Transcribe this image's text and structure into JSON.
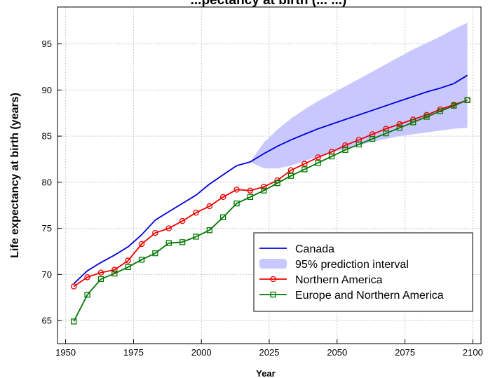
{
  "chart_data": {
    "type": "line",
    "title": "...pectancy at birth (... ...)",
    "xlabel": "Year",
    "ylabel": "Life expectancy at birth (years)",
    "xlim": [
      1947,
      2103
    ],
    "ylim": [
      62.5,
      99
    ],
    "x_ticks": [
      "1950",
      "1975",
      "2000",
      "2025",
      "2050",
      "2075",
      "2100"
    ],
    "y_ticks": [
      "65",
      "70",
      "75",
      "80",
      "85",
      "90",
      "95"
    ],
    "grid": true,
    "legend_position": "bottom-right",
    "series": [
      {
        "name": "Canada",
        "type": "line",
        "color": "#0000dd",
        "x": [
          1953,
          1958,
          1963,
          1968,
          1973,
          1978,
          1983,
          1988,
          1993,
          1998,
          2003,
          2008,
          2013,
          2018,
          2023,
          2028,
          2033,
          2038,
          2043,
          2048,
          2053,
          2058,
          2063,
          2068,
          2073,
          2078,
          2083,
          2088,
          2093,
          2098
        ],
        "y": [
          69.0,
          70.4,
          71.3,
          72.1,
          73.0,
          74.3,
          75.9,
          76.8,
          77.7,
          78.6,
          79.8,
          80.8,
          81.8,
          82.2,
          83.1,
          83.9,
          84.6,
          85.2,
          85.8,
          86.3,
          86.8,
          87.3,
          87.8,
          88.3,
          88.8,
          89.3,
          89.8,
          90.2,
          90.7,
          91.6
        ]
      },
      {
        "name": "95% prediction interval",
        "type": "band",
        "color": "#c8c8ff",
        "x": [
          2018,
          2023,
          2028,
          2033,
          2038,
          2043,
          2048,
          2053,
          2058,
          2063,
          2068,
          2073,
          2078,
          2083,
          2088,
          2093,
          2098
        ],
        "lower": [
          82.2,
          81.5,
          81.5,
          81.8,
          82.3,
          82.8,
          83.2,
          83.6,
          84.0,
          84.4,
          84.7,
          85.0,
          85.2,
          85.4,
          85.6,
          85.8,
          85.9
        ],
        "upper": [
          82.2,
          84.3,
          85.7,
          86.9,
          87.9,
          88.8,
          89.6,
          90.4,
          91.2,
          92.0,
          92.8,
          93.6,
          94.4,
          95.1,
          95.8,
          96.6,
          97.3
        ]
      },
      {
        "name": "Northern America",
        "type": "line",
        "marker": "circle",
        "color": "#ee0000",
        "x": [
          1953,
          1958,
          1963,
          1968,
          1973,
          1978,
          1983,
          1988,
          1993,
          1998,
          2003,
          2008,
          2013,
          2018,
          2023,
          2028,
          2033,
          2038,
          2043,
          2048,
          2053,
          2058,
          2063,
          2068,
          2073,
          2078,
          2083,
          2088,
          2093,
          2098
        ],
        "y": [
          68.7,
          69.7,
          70.2,
          70.5,
          71.5,
          73.3,
          74.5,
          75.0,
          75.8,
          76.7,
          77.4,
          78.4,
          79.2,
          79.1,
          79.5,
          80.2,
          81.3,
          82.0,
          82.7,
          83.3,
          84.0,
          84.6,
          85.2,
          85.8,
          86.3,
          86.8,
          87.3,
          87.9,
          88.4,
          88.9
        ]
      },
      {
        "name": "Europe and Northern America",
        "type": "line",
        "marker": "square",
        "color": "#007700",
        "x": [
          1953,
          1958,
          1963,
          1968,
          1973,
          1978,
          1983,
          1988,
          1993,
          1998,
          2003,
          2008,
          2013,
          2018,
          2023,
          2028,
          2033,
          2038,
          2043,
          2048,
          2053,
          2058,
          2063,
          2068,
          2073,
          2078,
          2083,
          2088,
          2093,
          2098
        ],
        "y": [
          64.9,
          67.8,
          69.5,
          70.1,
          70.8,
          71.6,
          72.3,
          73.4,
          73.5,
          74.1,
          74.8,
          76.2,
          77.7,
          78.4,
          79.1,
          79.9,
          80.7,
          81.4,
          82.1,
          82.8,
          83.5,
          84.1,
          84.7,
          85.3,
          85.9,
          86.5,
          87.1,
          87.7,
          88.3,
          88.9
        ]
      }
    ]
  }
}
